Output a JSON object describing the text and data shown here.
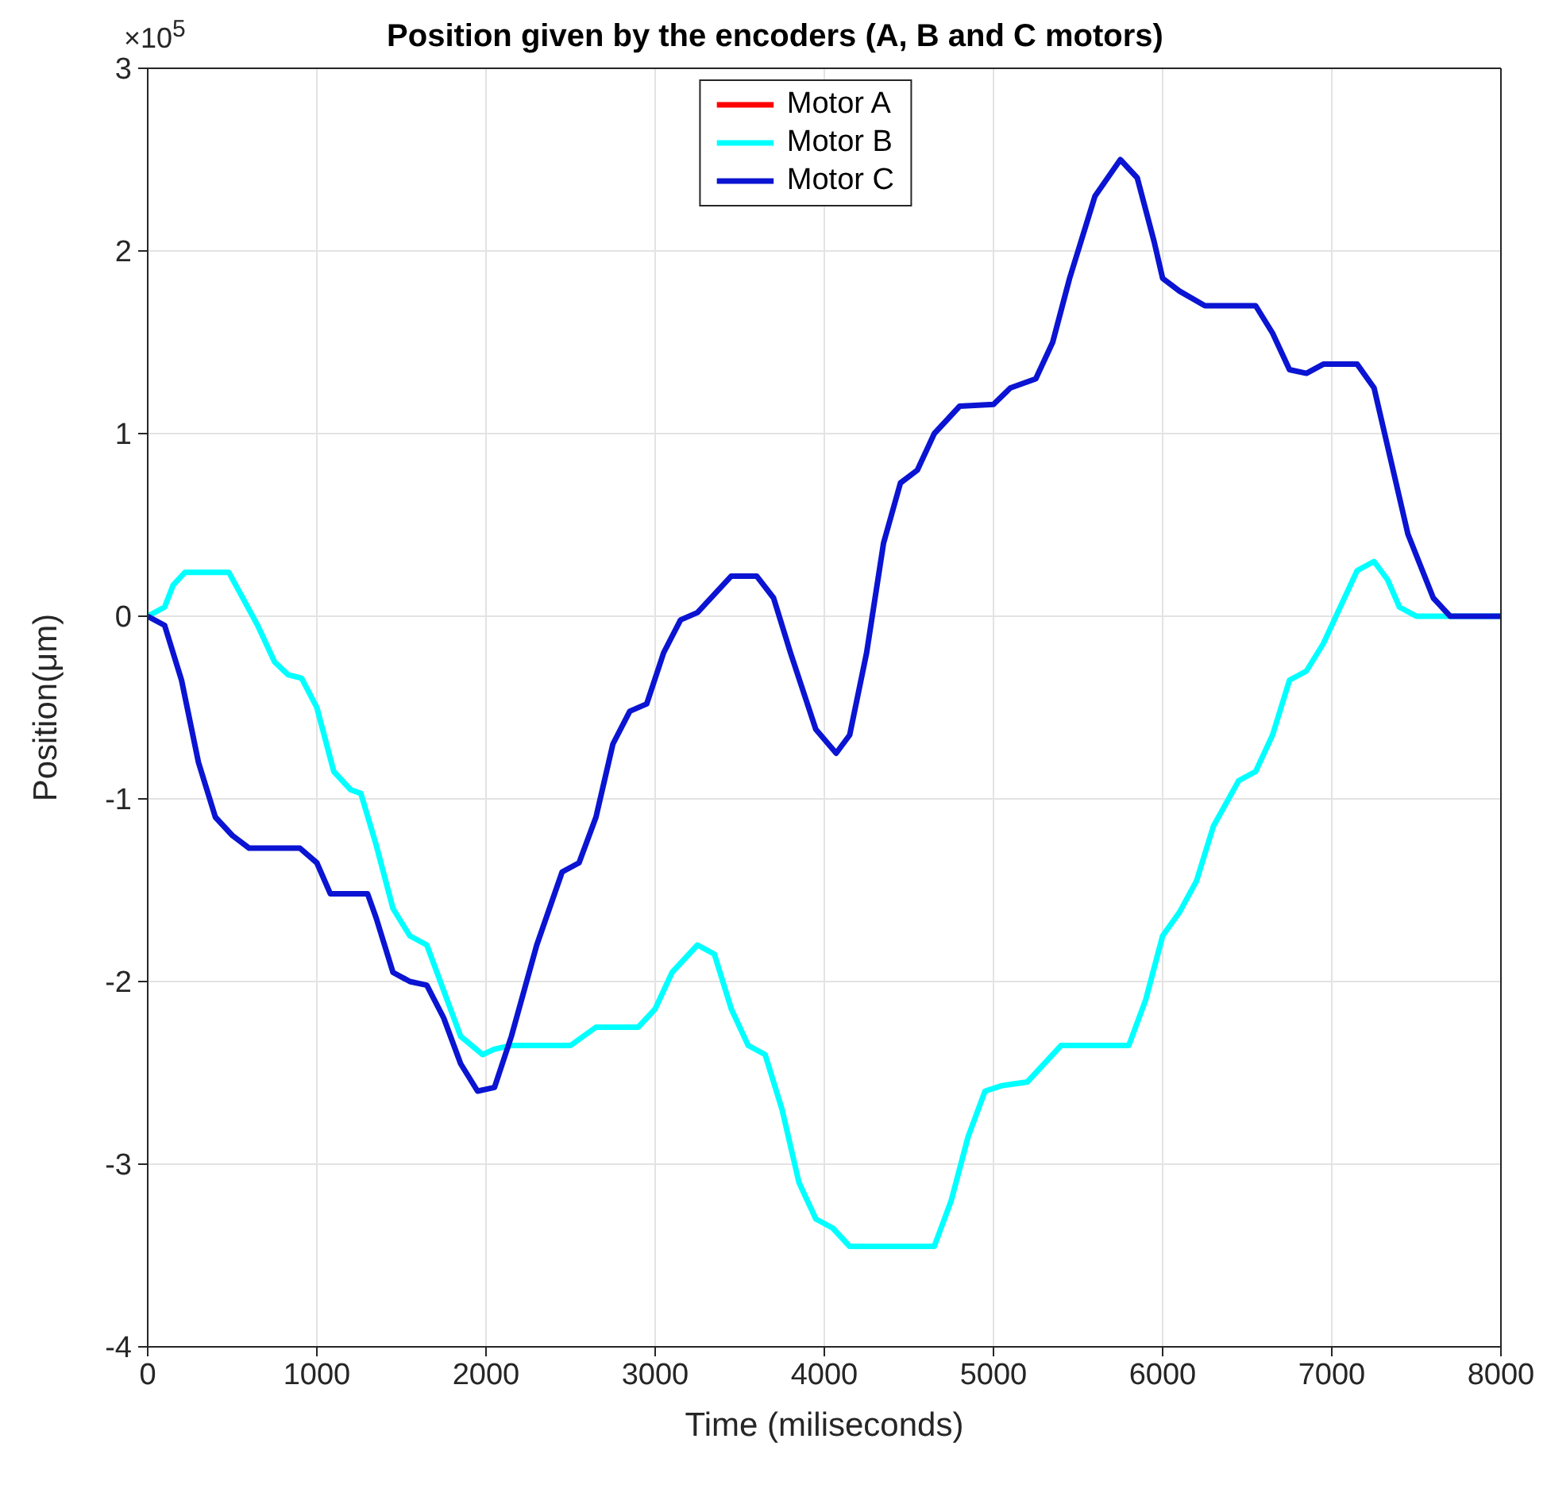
{
  "chart_data": {
    "type": "line",
    "title": "Position given by the encoders (A, B and C motors)",
    "xlabel": "Time (miliseconds)",
    "ylabel": "Position(μm)",
    "annotations": [
      "×10$^{5}$"
    ],
    "xlim": [
      0,
      8000
    ],
    "xticks": [
      0,
      1000,
      2000,
      3000,
      4000,
      5000,
      6000,
      7000,
      8000
    ],
    "ylim": [
      -4,
      3
    ],
    "yticks": [
      -4,
      -3,
      -2,
      -1,
      0,
      1,
      2,
      3
    ],
    "grid": true,
    "legend": "top",
    "line_style": "solid",
    "marker": "none",
    "series": [
      {
        "name": "Motor A",
        "color": "#ff0000"
      },
      {
        "name": "Motor B",
        "color": "#00ffff",
        "x": [
          0,
          100,
          150,
          220,
          480,
          650,
          750,
          830,
          910,
          1000,
          1100,
          1200,
          1260,
          1350,
          1450,
          1550,
          1650,
          1750,
          1850,
          1980,
          2050,
          2150,
          2500,
          2650,
          2900,
          3000,
          3100,
          3250,
          3350,
          3450,
          3550,
          3650,
          3750,
          3850,
          3950,
          4050,
          4150,
          4250,
          4650,
          4750,
          4850,
          4950,
          5050,
          5200,
          5300,
          5400,
          5800,
          5900,
          6000,
          6100,
          6200,
          6300,
          6450,
          6550,
          6650,
          6750,
          6850,
          6950,
          7050,
          7150,
          7250,
          7330,
          7400,
          7500,
          7900,
          8000
        ],
        "values": [
          0,
          0.05,
          0.17,
          0.24,
          0.24,
          -0.05,
          -0.25,
          -0.32,
          -0.34,
          -0.5,
          -0.85,
          -0.95,
          -0.97,
          -1.25,
          -1.6,
          -1.75,
          -1.8,
          -2.05,
          -2.3,
          -2.4,
          -2.37,
          -2.35,
          -2.35,
          -2.25,
          -2.25,
          -2.15,
          -1.95,
          -1.8,
          -1.85,
          -2.15,
          -2.35,
          -2.4,
          -2.7,
          -3.1,
          -3.3,
          -3.35,
          -3.45,
          -3.45,
          -3.45,
          -3.2,
          -2.85,
          -2.6,
          -2.57,
          -2.55,
          -2.45,
          -2.35,
          -2.35,
          -2.1,
          -1.75,
          -1.62,
          -1.45,
          -1.15,
          -0.9,
          -0.85,
          -0.65,
          -0.35,
          -0.3,
          -0.15,
          0.05,
          0.25,
          0.3,
          0.2,
          0.05,
          0,
          0,
          0
        ]
      },
      {
        "name": "Motor C",
        "color": "#0a14d2",
        "x": [
          0,
          100,
          200,
          300,
          400,
          500,
          600,
          900,
          1000,
          1080,
          1300,
          1350,
          1450,
          1550,
          1650,
          1750,
          1850,
          1950,
          2050,
          2150,
          2300,
          2450,
          2550,
          2650,
          2750,
          2850,
          2950,
          3050,
          3150,
          3250,
          3350,
          3450,
          3600,
          3700,
          3800,
          3950,
          4070,
          4150,
          4250,
          4350,
          4450,
          4550,
          4650,
          4800,
          5000,
          5100,
          5250,
          5350,
          5450,
          5600,
          5750,
          5850,
          5950,
          6000,
          6100,
          6250,
          6550,
          6650,
          6750,
          6850,
          6950,
          7150,
          7250,
          7350,
          7450,
          7600,
          7700,
          8000
        ],
        "values": [
          0,
          -0.05,
          -0.35,
          -0.8,
          -1.1,
          -1.2,
          -1.27,
          -1.27,
          -1.35,
          -1.52,
          -1.52,
          -1.65,
          -1.95,
          -2.0,
          -2.02,
          -2.2,
          -2.45,
          -2.6,
          -2.58,
          -2.3,
          -1.8,
          -1.4,
          -1.35,
          -1.1,
          -0.7,
          -0.52,
          -0.48,
          -0.2,
          -0.02,
          0.02,
          0.12,
          0.22,
          0.22,
          0.1,
          -0.2,
          -0.62,
          -0.75,
          -0.65,
          -0.2,
          0.4,
          0.73,
          0.8,
          1.0,
          1.15,
          1.16,
          1.25,
          1.3,
          1.5,
          1.85,
          2.3,
          2.5,
          2.4,
          2.05,
          1.85,
          1.78,
          1.7,
          1.7,
          1.55,
          1.35,
          1.33,
          1.38,
          1.38,
          1.25,
          0.85,
          0.45,
          0.1,
          0,
          0
        ]
      }
    ]
  }
}
